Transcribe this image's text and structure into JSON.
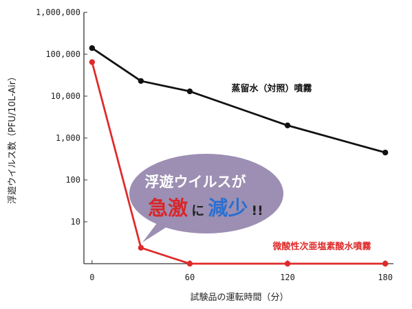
{
  "chart_data": {
    "type": "line",
    "xlabel": "試験品の運転時間（分）",
    "ylabel": "浮遊ウイルス数（PFU/10L-Air）",
    "x_ticks": [
      "0",
      "60",
      "120",
      "180"
    ],
    "xlim": [
      -5,
      185
    ],
    "y_scale": "log",
    "y_ticks": [
      "1,000,000",
      "100,000",
      "10,000",
      "1,000",
      "100",
      "10"
    ],
    "ylim": [
      1,
      1000000
    ],
    "grid": false,
    "series": [
      {
        "name": "蒸留水（対照）噴霧",
        "color": "#111111",
        "x": [
          0,
          30,
          60,
          120,
          180
        ],
        "y": [
          140000,
          23000,
          13000,
          2000,
          450
        ]
      },
      {
        "name": "微酸性次亜塩素酸水噴霧",
        "color": "#e02a2a",
        "x": [
          0,
          30,
          60,
          120,
          180
        ],
        "y": [
          65000,
          2.4,
          1,
          1,
          1
        ]
      }
    ],
    "annotation": {
      "line1": "浮遊ウイルスが",
      "word1": "急激",
      "word1_color": "#d8262a",
      "particle": "に",
      "word2": "減少",
      "word2_color": "#2a6fd0",
      "suffix": "!!",
      "bubble_color": "#9c8fb3"
    }
  }
}
